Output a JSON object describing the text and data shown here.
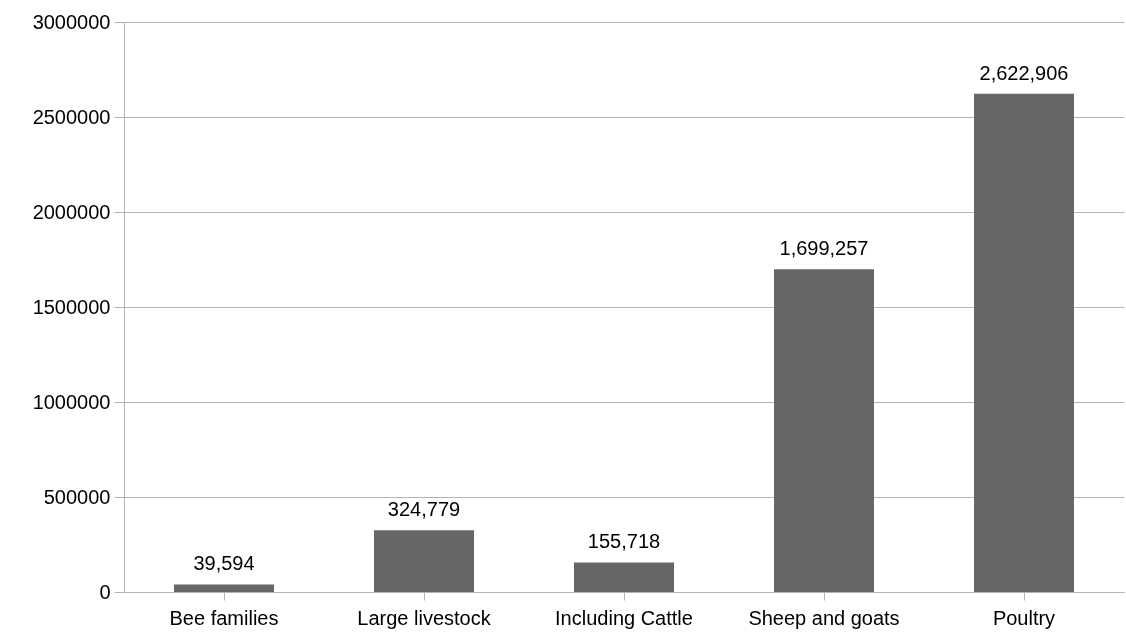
{
  "chart_data": {
    "type": "bar",
    "categories": [
      "Bee families",
      "Large livestock",
      "Including Cattle",
      "Sheep and goats",
      "Poultry"
    ],
    "values": [
      39594,
      324779,
      155718,
      1699257,
      2622906
    ],
    "value_labels": [
      "39,594",
      "324,779",
      "155,718",
      "1,699,257",
      "2,622,906"
    ],
    "color": "#666666",
    "ylim": [
      0,
      3000000
    ],
    "yticks": [
      0,
      500000,
      1000000,
      1500000,
      2000000,
      2500000,
      3000000
    ],
    "grid": "y"
  }
}
